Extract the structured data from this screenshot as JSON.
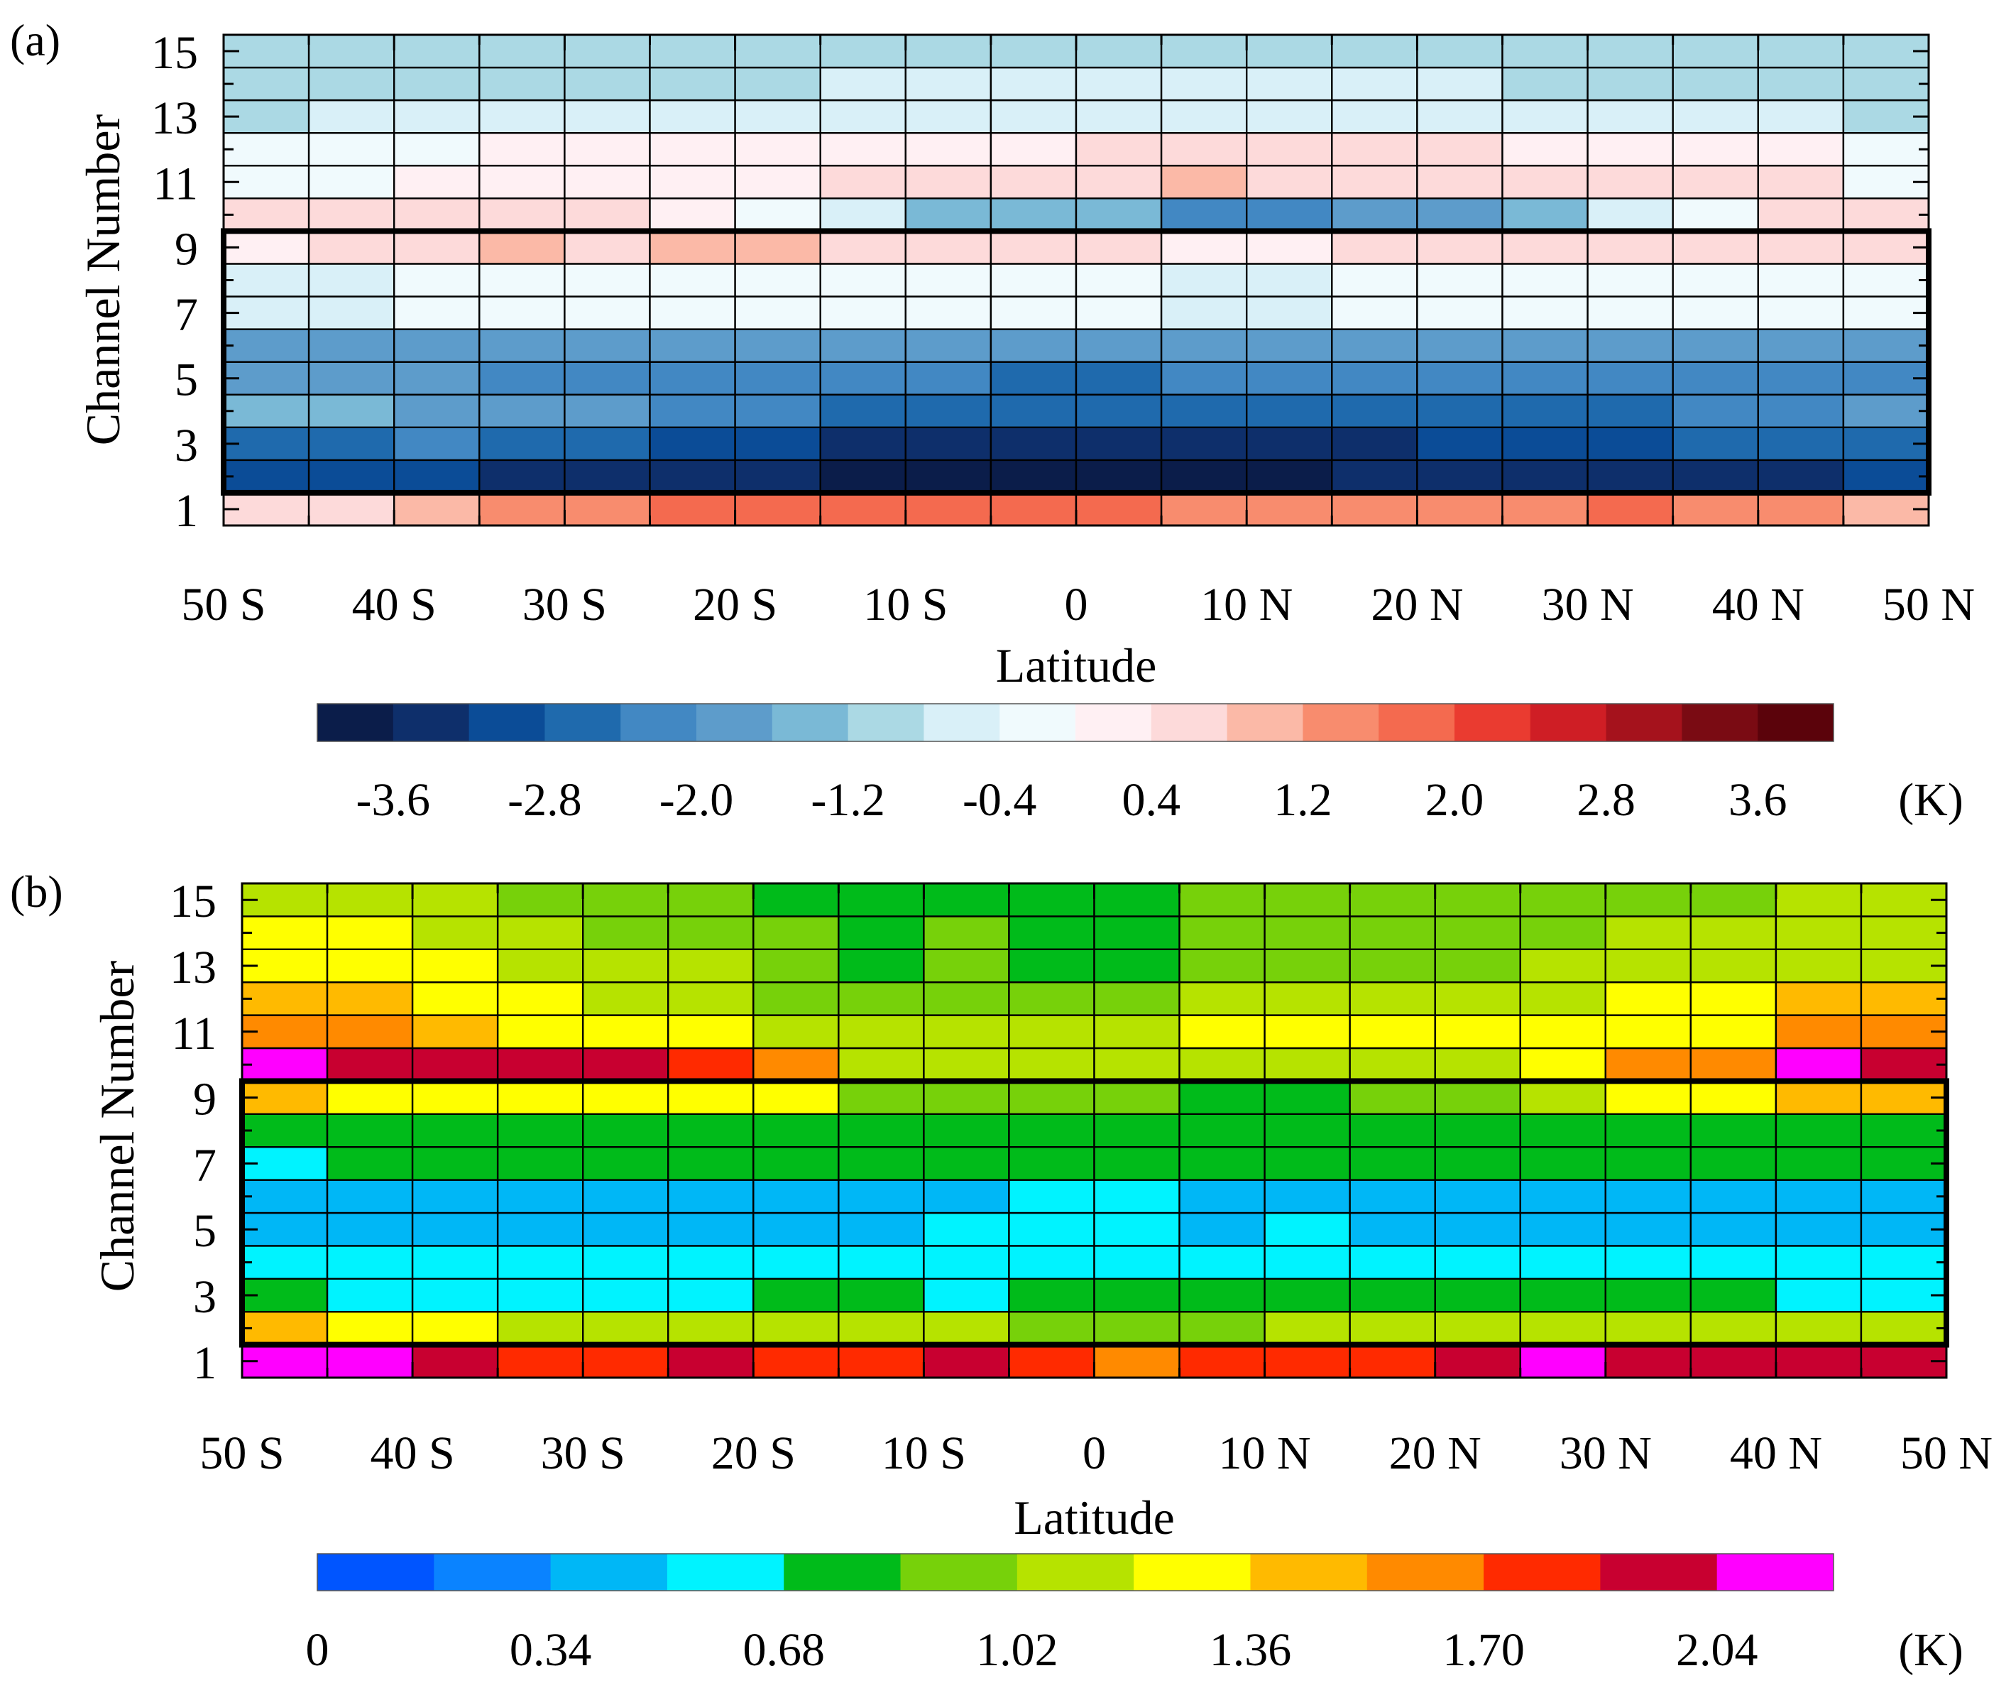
{
  "chart_data": [
    {
      "panel_label": "(a)",
      "type": "heatmap",
      "xlabel": "Latitude",
      "ylabel": "Channel Number",
      "x_tick_labels": [
        "50 S",
        "40 S",
        "30 S",
        "20 S",
        "10 S",
        "0",
        "10 N",
        "20 N",
        "30 N",
        "40 N",
        "50 N"
      ],
      "x_bin_edges_deg": [
        -50,
        -45,
        -40,
        -35,
        -30,
        -25,
        -20,
        -15,
        -10,
        -5,
        0,
        5,
        10,
        15,
        20,
        25,
        30,
        35,
        40,
        45,
        50
      ],
      "y_tick_labels": [
        "1",
        "3",
        "5",
        "7",
        "9",
        "11",
        "13",
        "15"
      ],
      "channels": [
        1,
        2,
        3,
        4,
        5,
        6,
        7,
        8,
        9,
        10,
        11,
        12,
        13,
        14,
        15
      ],
      "highlight_box_channels": [
        2,
        9
      ],
      "colorbar": {
        "unit": "(K)",
        "tick_labels": [
          "-3.6",
          "-2.8",
          "-2.0",
          "-1.2",
          "-0.4",
          "0.4",
          "1.2",
          "2.0",
          "2.8",
          "3.6"
        ],
        "levels": [
          -4.0,
          -3.6,
          -3.2,
          -2.8,
          -2.4,
          -2.0,
          -1.6,
          -1.2,
          -0.8,
          -0.4,
          0,
          0.4,
          0.8,
          1.2,
          1.6,
          2.0,
          2.4,
          2.8,
          3.2,
          3.6,
          4.0
        ],
        "colors": [
          "#0b1d4a",
          "#0e2f6b",
          "#0b4c97",
          "#1f6aad",
          "#4288c3",
          "#5d9ccb",
          "#7ab9d6",
          "#abd9e4",
          "#d9f0f8",
          "#f0fafd",
          "#fff0f3",
          "#fddada",
          "#fbb9a7",
          "#f88c6e",
          "#f46a4f",
          "#ea3b30",
          "#cf1e25",
          "#a5121c",
          "#7a0b13",
          "#5b030b"
        ]
      },
      "values_by_channel": [
        [
          0.6,
          0.6,
          1.0,
          1.5,
          1.5,
          1.9,
          1.9,
          1.8,
          1.8,
          1.8,
          1.9,
          1.5,
          1.5,
          1.5,
          1.5,
          1.5,
          1.9,
          1.5,
          1.5,
          1.0
        ],
        [
          -3.0,
          -3.0,
          -3.0,
          -3.4,
          -3.4,
          -3.4,
          -3.4,
          -3.8,
          -3.8,
          -3.8,
          -3.8,
          -3.8,
          -3.8,
          -3.4,
          -3.4,
          -3.4,
          -3.4,
          -3.4,
          -3.4,
          -3.0
        ],
        [
          -2.6,
          -2.6,
          -2.2,
          -2.6,
          -2.6,
          -3.0,
          -3.0,
          -3.4,
          -3.4,
          -3.4,
          -3.4,
          -3.4,
          -3.4,
          -3.4,
          -3.0,
          -3.0,
          -3.0,
          -2.6,
          -2.6,
          -2.6
        ],
        [
          -1.4,
          -1.4,
          -1.8,
          -1.8,
          -1.8,
          -2.2,
          -2.2,
          -2.6,
          -2.6,
          -2.6,
          -2.6,
          -2.6,
          -2.6,
          -2.6,
          -2.6,
          -2.6,
          -2.6,
          -2.2,
          -2.2,
          -1.8
        ],
        [
          -1.8,
          -1.8,
          -1.8,
          -2.2,
          -2.2,
          -2.2,
          -2.2,
          -2.2,
          -2.2,
          -2.6,
          -2.6,
          -2.2,
          -2.2,
          -2.2,
          -2.2,
          -2.2,
          -2.2,
          -2.2,
          -2.2,
          -2.2
        ],
        [
          -1.8,
          -1.8,
          -1.8,
          -1.8,
          -1.8,
          -1.8,
          -1.8,
          -1.8,
          -1.8,
          -1.8,
          -1.8,
          -1.8,
          -1.8,
          -1.8,
          -1.8,
          -1.8,
          -1.8,
          -1.8,
          -1.8,
          -1.8
        ],
        [
          -0.6,
          -0.6,
          -0.2,
          -0.2,
          -0.2,
          -0.2,
          -0.2,
          -0.2,
          -0.2,
          -0.2,
          -0.2,
          -0.6,
          -0.6,
          -0.2,
          -0.2,
          -0.2,
          -0.2,
          -0.2,
          -0.2,
          -0.2
        ],
        [
          -0.6,
          -0.6,
          -0.2,
          -0.2,
          -0.2,
          -0.2,
          -0.2,
          -0.2,
          -0.2,
          -0.2,
          -0.2,
          -0.6,
          -0.6,
          -0.2,
          -0.2,
          -0.2,
          -0.2,
          -0.2,
          -0.2,
          -0.2
        ],
        [
          0.2,
          0.6,
          0.6,
          1.0,
          0.6,
          1.0,
          1.0,
          0.6,
          0.6,
          0.6,
          0.6,
          0.2,
          0.2,
          0.6,
          0.6,
          0.6,
          0.6,
          0.6,
          0.6,
          0.6
        ],
        [
          0.6,
          0.6,
          0.6,
          0.6,
          0.6,
          0.2,
          -0.2,
          -0.6,
          -1.4,
          -1.4,
          -1.4,
          -2.2,
          -2.2,
          -1.8,
          -1.8,
          -1.4,
          -0.6,
          -0.2,
          0.6,
          0.6
        ],
        [
          -0.2,
          -0.2,
          0.2,
          0.2,
          0.2,
          0.2,
          0.2,
          0.6,
          0.6,
          0.6,
          0.6,
          1.0,
          0.6,
          0.6,
          0.6,
          0.6,
          0.6,
          0.6,
          0.6,
          -0.2
        ],
        [
          -0.2,
          -0.2,
          -0.2,
          0.2,
          0.2,
          0.2,
          0.2,
          0.2,
          0.2,
          0.2,
          0.6,
          0.6,
          0.6,
          0.6,
          0.6,
          0.2,
          0.2,
          0.2,
          0.2,
          -0.2
        ],
        [
          -1.2,
          -0.6,
          -0.6,
          -0.6,
          -0.6,
          -0.6,
          -0.6,
          -0.6,
          -0.6,
          -0.6,
          -0.6,
          -0.6,
          -0.6,
          -0.6,
          -0.6,
          -0.6,
          -0.6,
          -0.6,
          -0.6,
          -1.2
        ],
        [
          -1.2,
          -1.2,
          -1.2,
          -1.2,
          -1.2,
          -1.2,
          -1.2,
          -0.6,
          -0.6,
          -0.6,
          -0.6,
          -0.6,
          -0.6,
          -0.6,
          -0.6,
          -1.2,
          -1.2,
          -1.2,
          -1.2,
          -1.2
        ],
        [
          -1.2,
          -1.2,
          -1.2,
          -1.2,
          -1.2,
          -1.2,
          -1.2,
          -1.2,
          -1.2,
          -1.2,
          -1.2,
          -1.2,
          -1.2,
          -1.2,
          -1.2,
          -1.2,
          -1.2,
          -1.2,
          -1.2,
          -1.2
        ]
      ]
    },
    {
      "panel_label": "(b)",
      "type": "heatmap",
      "xlabel": "Latitude",
      "ylabel": "Channel Number",
      "x_tick_labels": [
        "50 S",
        "40 S",
        "30 S",
        "20 S",
        "10 S",
        "0",
        "10 N",
        "20 N",
        "30 N",
        "40 N",
        "50 N"
      ],
      "x_bin_edges_deg": [
        -50,
        -45,
        -40,
        -35,
        -30,
        -25,
        -20,
        -15,
        -10,
        -5,
        0,
        5,
        10,
        15,
        20,
        25,
        30,
        35,
        40,
        45,
        50
      ],
      "y_tick_labels": [
        "1",
        "3",
        "5",
        "7",
        "9",
        "11",
        "13",
        "15"
      ],
      "channels": [
        1,
        2,
        3,
        4,
        5,
        6,
        7,
        8,
        9,
        10,
        11,
        12,
        13,
        14,
        15
      ],
      "highlight_box_channels": [
        2,
        9
      ],
      "colorbar": {
        "unit": "(K)",
        "tick_labels": [
          "0",
          "0.34",
          "0.68",
          "1.02",
          "1.36",
          "1.70",
          "2.04"
        ],
        "levels": [
          0,
          0.17,
          0.34,
          0.51,
          0.68,
          0.85,
          1.02,
          1.19,
          1.36,
          1.53,
          1.7,
          1.87,
          2.04,
          2.21
        ],
        "colors": [
          "#0055ff",
          "#0a83ff",
          "#00b7f6",
          "#00f3ff",
          "#00bb1a",
          "#77d10a",
          "#b6e300",
          "#ffff00",
          "#ffba00",
          "#ff8a00",
          "#ff2a00",
          "#c80030",
          "#ff00ff"
        ]
      },
      "values_by_channel": [
        [
          2.1,
          2.1,
          1.95,
          1.8,
          1.8,
          1.95,
          1.8,
          1.8,
          1.95,
          1.8,
          1.6,
          1.8,
          1.8,
          1.8,
          1.95,
          2.1,
          1.95,
          1.95,
          1.95,
          1.95
        ],
        [
          1.4,
          1.3,
          1.3,
          1.1,
          1.1,
          1.1,
          1.1,
          1.1,
          1.1,
          0.95,
          0.95,
          0.95,
          1.1,
          1.1,
          1.1,
          1.1,
          1.1,
          1.1,
          1.1,
          1.1
        ],
        [
          0.75,
          0.6,
          0.6,
          0.6,
          0.6,
          0.6,
          0.75,
          0.75,
          0.6,
          0.75,
          0.75,
          0.75,
          0.75,
          0.75,
          0.75,
          0.75,
          0.75,
          0.75,
          0.6,
          0.6
        ],
        [
          0.6,
          0.6,
          0.6,
          0.6,
          0.6,
          0.6,
          0.6,
          0.6,
          0.6,
          0.6,
          0.6,
          0.6,
          0.6,
          0.6,
          0.6,
          0.6,
          0.6,
          0.6,
          0.6,
          0.6
        ],
        [
          0.45,
          0.45,
          0.45,
          0.45,
          0.45,
          0.45,
          0.45,
          0.45,
          0.6,
          0.6,
          0.6,
          0.45,
          0.6,
          0.45,
          0.45,
          0.45,
          0.45,
          0.45,
          0.45,
          0.45
        ],
        [
          0.45,
          0.45,
          0.45,
          0.45,
          0.45,
          0.45,
          0.45,
          0.45,
          0.45,
          0.6,
          0.6,
          0.45,
          0.45,
          0.45,
          0.45,
          0.45,
          0.45,
          0.45,
          0.45,
          0.45
        ],
        [
          0.6,
          0.75,
          0.75,
          0.75,
          0.75,
          0.75,
          0.75,
          0.75,
          0.75,
          0.75,
          0.75,
          0.75,
          0.75,
          0.75,
          0.75,
          0.75,
          0.75,
          0.75,
          0.75,
          0.75
        ],
        [
          0.75,
          0.75,
          0.75,
          0.75,
          0.75,
          0.75,
          0.75,
          0.75,
          0.75,
          0.75,
          0.75,
          0.75,
          0.75,
          0.75,
          0.75,
          0.75,
          0.75,
          0.75,
          0.75,
          0.75
        ],
        [
          1.45,
          1.3,
          1.3,
          1.3,
          1.3,
          1.3,
          1.3,
          0.95,
          0.95,
          0.95,
          0.95,
          0.75,
          0.75,
          0.95,
          0.95,
          1.1,
          1.3,
          1.3,
          1.45,
          1.45
        ],
        [
          2.1,
          1.95,
          1.95,
          1.95,
          1.95,
          1.8,
          1.6,
          1.1,
          1.1,
          1.1,
          1.1,
          1.1,
          1.1,
          1.1,
          1.1,
          1.3,
          1.6,
          1.6,
          2.1,
          1.95
        ],
        [
          1.6,
          1.6,
          1.45,
          1.3,
          1.3,
          1.3,
          1.1,
          1.1,
          1.1,
          1.1,
          1.1,
          1.3,
          1.3,
          1.3,
          1.3,
          1.3,
          1.3,
          1.3,
          1.6,
          1.6
        ],
        [
          1.45,
          1.45,
          1.3,
          1.3,
          1.1,
          1.1,
          0.95,
          0.95,
          0.95,
          0.95,
          0.95,
          1.1,
          1.1,
          1.1,
          1.1,
          1.1,
          1.3,
          1.3,
          1.45,
          1.45
        ],
        [
          1.3,
          1.3,
          1.3,
          1.1,
          1.1,
          1.1,
          0.95,
          0.75,
          0.95,
          0.75,
          0.75,
          0.95,
          0.95,
          0.95,
          0.95,
          1.1,
          1.1,
          1.1,
          1.1,
          1.1
        ],
        [
          1.3,
          1.3,
          1.1,
          1.1,
          0.95,
          0.95,
          0.95,
          0.75,
          0.95,
          0.75,
          0.75,
          0.95,
          0.95,
          0.95,
          0.95,
          0.95,
          1.1,
          1.1,
          1.1,
          1.1
        ],
        [
          1.1,
          1.1,
          1.1,
          0.95,
          0.95,
          0.95,
          0.75,
          0.75,
          0.75,
          0.75,
          0.75,
          0.95,
          0.95,
          0.95,
          0.95,
          0.95,
          0.95,
          0.95,
          1.1,
          1.1
        ]
      ]
    }
  ]
}
